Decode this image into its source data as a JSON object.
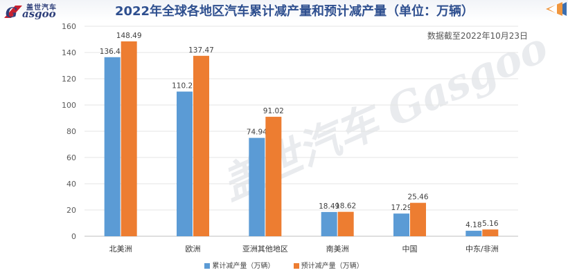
{
  "header": {
    "logo_cn": "盖世汽车",
    "logo_en": "asgoo",
    "logo_initial": "G",
    "title": "2022年全球各地区汽车累计减产量和预计减产量（单位：万辆）",
    "note": "数据截至2022年10月23日",
    "watermark": "盖世汽车 Gasgoo"
  },
  "colors": {
    "cumulative": "#5b9bd5",
    "forecast": "#ed7d31",
    "title": "#2e4f8f",
    "arrow_orange": "#f0963e",
    "arrow_blue": "#3b6fb0"
  },
  "chart_data": {
    "type": "bar",
    "title": "2022年全球各地区汽车累计减产量和预计减产量（单位：万辆）",
    "categories": [
      "北美洲",
      "欧洲",
      "亚洲其他地区",
      "南美洲",
      "中国",
      "中东/非洲"
    ],
    "series": [
      {
        "name": "累计减产量（万辆）",
        "values": [
          136.43,
          110.23,
          74.94,
          18.49,
          17.29,
          4.18
        ]
      },
      {
        "name": "预计减产量（万辆）",
        "values": [
          148.49,
          137.47,
          91.02,
          18.62,
          25.46,
          5.16
        ]
      }
    ],
    "yticks": [
      "0",
      "20",
      "40",
      "60",
      "80",
      "100",
      "120",
      "140",
      "160"
    ],
    "ylim": [
      0,
      160
    ],
    "xlabel": "",
    "ylabel": "",
    "grid": true,
    "legend": "bottom"
  }
}
